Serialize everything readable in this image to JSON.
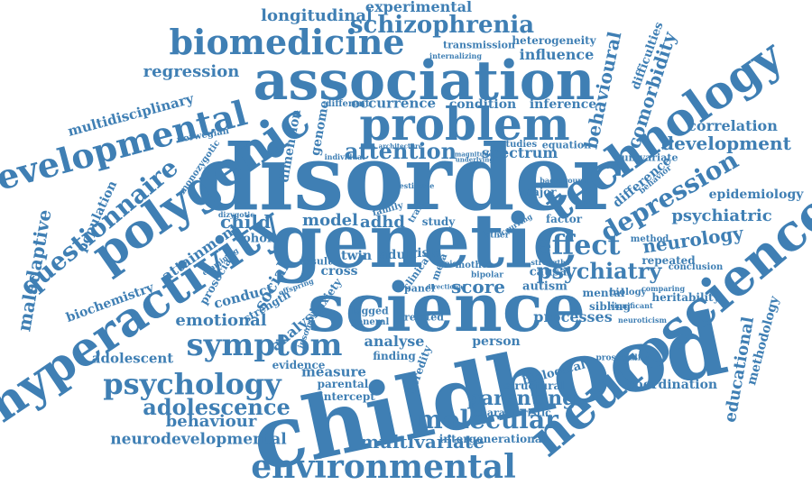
{
  "color": "#3f7fb4",
  "words": [
    "disorder",
    "genetic",
    "childhood",
    "science",
    "association",
    "problem",
    "neuroscience",
    "technology",
    "hyperactivity",
    "polygenic",
    "developmental",
    "biomedicine",
    "environmental",
    "symptom",
    "psychology",
    "depression",
    "schizophrenia",
    "questionnaire",
    "development",
    "longitudinal",
    "experimental",
    "behavioural",
    "comorbidity",
    "regression",
    "multidisciplinary",
    "maladaptive",
    "attention",
    "molecular",
    "multivariate",
    "adolescence",
    "effect",
    "psychiatry",
    "neurology",
    "psychiatric",
    "parenting",
    "behaviour",
    "neurodevelopmental",
    "emotional",
    "spectrum",
    "occurrence",
    "dimension",
    "genome",
    "population",
    "biochemistry",
    "educational",
    "methodology",
    "epidemiology",
    "correlation",
    "difference",
    "attainment",
    "child",
    "model",
    "adhd",
    "score",
    "processes",
    "analyse",
    "adolescent",
    "coordination",
    "heritability",
    "influence",
    "transmission",
    "heterogeneity",
    "difficulties",
    "condition",
    "inference",
    "social",
    "conduct",
    "analysis",
    "cohort",
    "twin",
    "adult",
    "cross",
    "risk",
    "person",
    "finding",
    "measure",
    "evidence",
    "parental",
    "intercept",
    "characteristic",
    "intergenerational",
    "biological",
    "structural",
    "heredity",
    "mental",
    "sibling",
    "autism",
    "causal",
    "factor",
    "major",
    "study",
    "studies",
    "equation",
    "univariate",
    "repeated",
    "conclusion",
    "biology",
    "neuroticism",
    "prosociality",
    "prosocial",
    "strength",
    "anxiety",
    "related",
    "lagged",
    "general",
    "result",
    "mother",
    "father",
    "method",
    "norwegian",
    "monozygotic",
    "different",
    "individual",
    "internalizing",
    "offspring",
    "panel",
    "meta",
    "clinical",
    "bipolar",
    "strengths",
    "significant",
    "comparing",
    "behavior",
    "estimate",
    "background",
    "family",
    "trait",
    "insomnia",
    "examining",
    "underlying",
    "magnitude",
    "architecture",
    "directional",
    "occurring",
    "topic",
    "dizygotic"
  ]
}
